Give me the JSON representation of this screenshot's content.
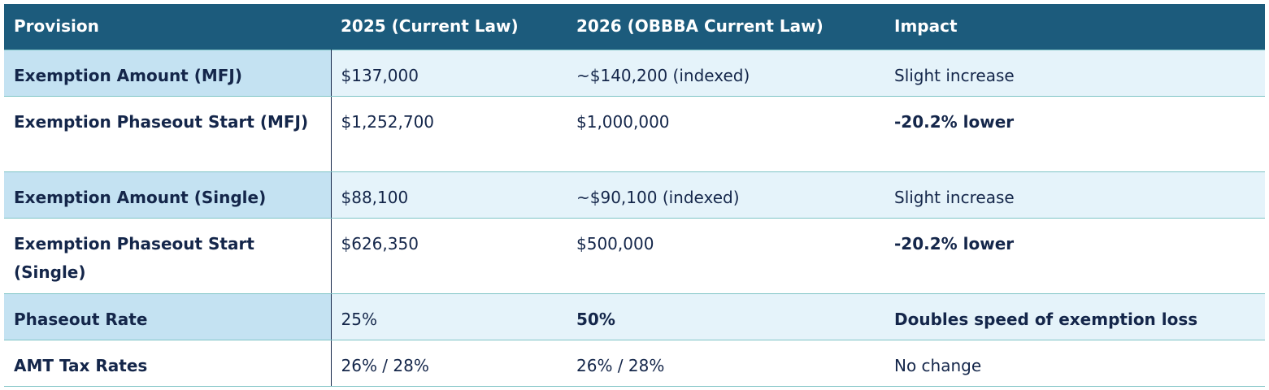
{
  "table": {
    "header": [
      "Provision",
      "2025 (Current Law)",
      "2026 (OBBBA Current Law)",
      "Impact"
    ],
    "rows": [
      [
        "Exemption Amount (MFJ)",
        "$137,000",
        "~$140,200 (indexed)",
        "Slight increase"
      ],
      [
        "Exemption Phaseout Start (MFJ)",
        "$1,252,700",
        "$1,000,000",
        "-20.2% lower"
      ],
      [
        "Exemption Amount (Single)",
        "$88,100",
        "~$90,100 (indexed)",
        "Slight increase"
      ],
      [
        "Exemption Phaseout Start (Single)",
        "$626,350",
        "$500,000",
        "-20.2% lower"
      ],
      [
        "Phaseout Rate",
        "25%",
        "50%",
        "Doubles speed of exemption loss"
      ],
      [
        "AMT Tax Rates",
        "26% / 28%",
        "26% / 28%",
        "No change"
      ]
    ]
  }
}
